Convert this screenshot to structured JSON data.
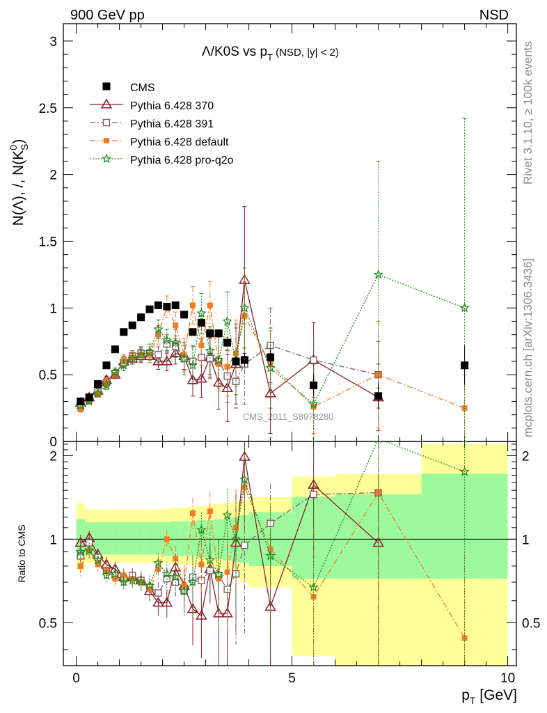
{
  "header": {
    "left": "900 GeV pp",
    "right": "NSD"
  },
  "side_text": {
    "version": "Rivet 3.1.10, ≥ 100k events",
    "source": "mcplots.cern.ch [arXiv:1306.3436]"
  },
  "main": {
    "title_a": "Λ/K0S vs p",
    "title_sub": "T",
    "title_b": " (NSD, |y| < 2)",
    "ylabel_a": "N(Λ), /, N(K",
    "ylabel_sup": "0",
    "ylabel_sub": "S",
    "ylabel_b": ")",
    "watermark": "CMS_2011_S8978280"
  },
  "ratio": {
    "ylabel": "Ratio to CMS"
  },
  "xaxis": {
    "label_a": "p",
    "label_sub": "T",
    "label_b": " [GeV]"
  },
  "legend": [
    "CMS",
    "Pythia 6.428 370",
    "Pythia 6.428 391",
    "Pythia 6.428 default",
    "Pythia 6.428 pro-q2o"
  ],
  "colors": {
    "data": "#000000",
    "p370": "#8b1a2a",
    "p391": "#7a5a62",
    "default": "#f07c28",
    "proq2o": "#1e8a1e",
    "band_inner": "#9cfa9c",
    "band_outer": "#ffff99"
  },
  "chart_data": [
    {
      "type": "scatter",
      "title": "Λ/K0S vs pT (NSD, |y| < 2)",
      "xlabel": "pT [GeV]",
      "ylabel": "N(Λ), /, N(K0S)",
      "xlim": [
        -0.3,
        10.2
      ],
      "ylim": [
        0,
        3.13
      ],
      "x_ticks": [
        0,
        5,
        10
      ],
      "y_ticks": [
        0,
        0.5,
        1,
        1.5,
        2,
        2.5,
        3
      ],
      "legend_position": "top-left",
      "series": [
        {
          "name": "CMS",
          "style": "marker-square",
          "x": [
            0.1,
            0.3,
            0.5,
            0.7,
            0.9,
            1.1,
            1.3,
            1.5,
            1.7,
            1.9,
            2.1,
            2.3,
            2.5,
            2.7,
            2.9,
            3.1,
            3.3,
            3.5,
            3.7,
            3.9,
            4.5,
            5.5,
            7.0,
            9.0
          ],
          "y": [
            0.3,
            0.33,
            0.43,
            0.57,
            0.69,
            0.82,
            0.87,
            0.93,
            0.99,
            1.02,
            1.01,
            1.02,
            0.95,
            0.82,
            0.89,
            0.81,
            0.81,
            0.74,
            0.6,
            0.61,
            0.63,
            0.42,
            0.34,
            0.57
          ],
          "err": [
            0.01,
            0.01,
            0.01,
            0.01,
            0.01,
            0.01,
            0.01,
            0.01,
            0.01,
            0.01,
            0.01,
            0.02,
            0.02,
            0.02,
            0.03,
            0.03,
            0.03,
            0.03,
            0.04,
            0.05,
            0.06,
            0.08,
            0.1,
            0.15
          ]
        },
        {
          "name": "Pythia 6.428 370",
          "style": "solid-triangle",
          "x": [
            0.1,
            0.3,
            0.5,
            0.7,
            0.9,
            1.1,
            1.3,
            1.5,
            1.7,
            1.9,
            2.1,
            2.3,
            2.5,
            2.7,
            2.9,
            3.1,
            3.3,
            3.5,
            3.7,
            3.9,
            4.5,
            5.5,
            7.0
          ],
          "y": [
            0.29,
            0.33,
            0.38,
            0.46,
            0.5,
            0.6,
            0.62,
            0.64,
            0.64,
            0.6,
            0.6,
            0.66,
            0.64,
            0.46,
            0.47,
            0.63,
            0.44,
            0.4,
            0.58,
            1.21,
            0.36,
            0.61,
            0.33
          ],
          "err": [
            0.02,
            0.02,
            0.02,
            0.03,
            0.03,
            0.04,
            0.04,
            0.05,
            0.05,
            0.06,
            0.07,
            0.08,
            0.1,
            0.12,
            0.14,
            0.15,
            0.2,
            0.25,
            0.3,
            0.55,
            0.3,
            0.28,
            0.25
          ]
        },
        {
          "name": "Pythia 6.428 391",
          "style": "dashdot-square",
          "x": [
            0.1,
            0.3,
            0.5,
            0.7,
            0.9,
            1.1,
            1.3,
            1.5,
            1.7,
            1.9,
            2.1,
            2.3,
            2.5,
            2.7,
            2.9,
            3.1,
            3.3,
            3.5,
            3.7,
            3.9,
            4.5,
            5.5,
            7.0
          ],
          "y": [
            0.26,
            0.32,
            0.37,
            0.44,
            0.51,
            0.59,
            0.64,
            0.66,
            0.66,
            0.65,
            0.73,
            0.71,
            0.62,
            0.6,
            0.63,
            0.62,
            0.6,
            0.49,
            0.45,
            0.58,
            0.72,
            0.61,
            0.5
          ],
          "err": [
            0.02,
            0.02,
            0.02,
            0.03,
            0.03,
            0.04,
            0.04,
            0.05,
            0.05,
            0.06,
            0.07,
            0.08,
            0.1,
            0.12,
            0.14,
            0.15,
            0.2,
            0.2,
            0.2,
            0.3,
            0.28,
            0.28,
            0.25
          ]
        },
        {
          "name": "Pythia 6.428 default",
          "style": "dashdot-square-filled",
          "x": [
            0.1,
            0.3,
            0.5,
            0.7,
            0.9,
            1.1,
            1.3,
            1.5,
            1.7,
            1.9,
            2.1,
            2.3,
            2.5,
            2.7,
            2.9,
            3.1,
            3.3,
            3.5,
            3.7,
            3.9,
            4.5,
            5.5,
            7.0,
            9.0
          ],
          "y": [
            0.24,
            0.3,
            0.35,
            0.44,
            0.5,
            0.61,
            0.63,
            0.65,
            0.65,
            0.8,
            1.01,
            0.87,
            0.65,
            1.02,
            0.72,
            1.02,
            0.58,
            0.56,
            0.66,
            0.94,
            0.58,
            0.26,
            0.5,
            0.25
          ],
          "err": [
            0.02,
            0.02,
            0.02,
            0.03,
            0.03,
            0.04,
            0.04,
            0.05,
            0.06,
            0.07,
            0.08,
            0.1,
            0.12,
            0.14,
            0.15,
            0.18,
            0.2,
            0.22,
            0.25,
            0.3,
            0.25,
            0.2,
            0.4,
            0.25
          ]
        },
        {
          "name": "Pythia 6.428 pro-q2o",
          "style": "dotted-star",
          "x": [
            0.1,
            0.3,
            0.5,
            0.7,
            0.9,
            1.1,
            1.3,
            1.5,
            1.7,
            1.9,
            2.1,
            2.3,
            2.5,
            2.7,
            2.9,
            3.1,
            3.3,
            3.5,
            3.7,
            3.9,
            4.5,
            5.5,
            7.0,
            9.0
          ],
          "y": [
            0.27,
            0.3,
            0.36,
            0.42,
            0.52,
            0.57,
            0.62,
            0.65,
            0.67,
            0.84,
            0.76,
            0.74,
            0.62,
            0.57,
            0.96,
            0.68,
            0.61,
            0.9,
            0.6,
            1.0,
            0.55,
            0.28,
            1.25,
            1.0
          ],
          "err": [
            0.02,
            0.02,
            0.02,
            0.03,
            0.03,
            0.04,
            0.04,
            0.05,
            0.06,
            0.07,
            0.08,
            0.1,
            0.12,
            0.14,
            0.15,
            0.18,
            0.2,
            0.22,
            0.25,
            0.3,
            0.3,
            0.3,
            0.85,
            1.42
          ]
        }
      ]
    },
    {
      "type": "scatter",
      "xlabel": "pT [GeV]",
      "ylabel": "Ratio to CMS",
      "xlim": [
        -0.3,
        10.2
      ],
      "ylim": [
        0.35,
        2.25
      ],
      "y_scale": "log",
      "y_ticks": [
        0.5,
        1,
        2
      ],
      "bands": {
        "edges": [
          0,
          0.2,
          0.4,
          0.6,
          0.8,
          1.0,
          1.2,
          1.4,
          1.6,
          1.8,
          2.0,
          2.2,
          2.4,
          2.6,
          2.8,
          3.0,
          3.2,
          3.4,
          3.6,
          3.8,
          4.0,
          5.0,
          6.0,
          8.0,
          10.0
        ],
        "inner_lo": [
          0.85,
          0.88,
          0.88,
          0.88,
          0.88,
          0.88,
          0.88,
          0.88,
          0.88,
          0.88,
          0.87,
          0.87,
          0.87,
          0.87,
          0.86,
          0.86,
          0.85,
          0.84,
          0.83,
          0.82,
          0.8,
          0.72,
          0.72,
          0.72
        ],
        "inner_hi": [
          1.18,
          1.15,
          1.15,
          1.15,
          1.15,
          1.15,
          1.15,
          1.15,
          1.15,
          1.15,
          1.15,
          1.16,
          1.16,
          1.16,
          1.17,
          1.17,
          1.18,
          1.19,
          1.2,
          1.22,
          1.25,
          1.42,
          1.45,
          1.72
        ],
        "outer_lo": [
          0.77,
          0.82,
          0.82,
          0.82,
          0.82,
          0.82,
          0.82,
          0.82,
          0.82,
          0.82,
          0.82,
          0.81,
          0.81,
          0.8,
          0.8,
          0.79,
          0.78,
          0.77,
          0.72,
          0.7,
          0.67,
          0.38,
          0.35,
          0.35
        ],
        "outer_hi": [
          1.35,
          1.28,
          1.28,
          1.28,
          1.28,
          1.28,
          1.28,
          1.28,
          1.28,
          1.28,
          1.29,
          1.3,
          1.3,
          1.31,
          1.32,
          1.33,
          1.34,
          1.35,
          1.37,
          1.38,
          1.42,
          1.68,
          1.72,
          2.2
        ]
      },
      "series": [
        {
          "name": "Pythia 6.428 370",
          "x": [
            0.1,
            0.3,
            0.5,
            0.7,
            0.9,
            1.1,
            1.3,
            1.5,
            1.7,
            1.9,
            2.1,
            2.3,
            2.5,
            2.7,
            2.9,
            3.1,
            3.3,
            3.5,
            3.7,
            3.9,
            4.5,
            5.5,
            7.0
          ],
          "y": [
            0.97,
            1.01,
            0.88,
            0.81,
            0.78,
            0.73,
            0.73,
            0.71,
            0.65,
            0.59,
            0.59,
            0.79,
            0.68,
            0.56,
            0.53,
            0.78,
            0.54,
            0.54,
            0.97,
            1.98,
            0.57,
            1.57,
            0.97
          ]
        },
        {
          "name": "Pythia 6.428 391",
          "x": [
            0.1,
            0.3,
            0.5,
            0.7,
            0.9,
            1.1,
            1.3,
            1.5,
            1.7,
            1.9,
            2.1,
            2.3,
            2.5,
            2.7,
            2.9,
            3.1,
            3.3,
            3.5,
            3.7,
            3.9,
            4.5,
            5.5,
            7.0
          ],
          "y": [
            0.87,
            0.97,
            0.86,
            0.77,
            0.74,
            0.72,
            0.74,
            0.71,
            0.67,
            0.64,
            0.72,
            0.7,
            0.65,
            0.73,
            0.71,
            0.77,
            0.74,
            0.66,
            0.75,
            0.95,
            1.14,
            1.45,
            1.47
          ]
        },
        {
          "name": "Pythia 6.428 default",
          "x": [
            0.1,
            0.3,
            0.5,
            0.7,
            0.9,
            1.1,
            1.3,
            1.5,
            1.7,
            1.9,
            2.1,
            2.3,
            2.5,
            2.7,
            2.9,
            3.1,
            3.3,
            3.5,
            3.7,
            3.9,
            4.5,
            5.5,
            7.0,
            9.0
          ],
          "y": [
            0.8,
            0.91,
            0.81,
            0.77,
            0.72,
            0.74,
            0.72,
            0.7,
            0.66,
            0.78,
            1.0,
            0.85,
            0.68,
            1.24,
            0.81,
            1.26,
            0.72,
            0.76,
            1.1,
            1.54,
            0.92,
            0.62,
            1.47,
            0.44
          ]
        },
        {
          "name": "Pythia 6.428 pro-q2o",
          "x": [
            0.1,
            0.3,
            0.5,
            0.7,
            0.9,
            1.1,
            1.3,
            1.5,
            1.7,
            1.9,
            2.1,
            2.3,
            2.5,
            2.7,
            2.9,
            3.1,
            3.3,
            3.5,
            3.7,
            3.9,
            4.5,
            5.5,
            7.0,
            9.0
          ],
          "y": [
            0.9,
            0.91,
            0.84,
            0.74,
            0.75,
            0.7,
            0.71,
            0.7,
            0.68,
            0.82,
            0.75,
            0.73,
            0.65,
            0.7,
            1.08,
            0.84,
            0.75,
            1.22,
            1.0,
            1.64,
            0.87,
            0.67,
            2.3,
            1.75
          ]
        }
      ]
    }
  ]
}
